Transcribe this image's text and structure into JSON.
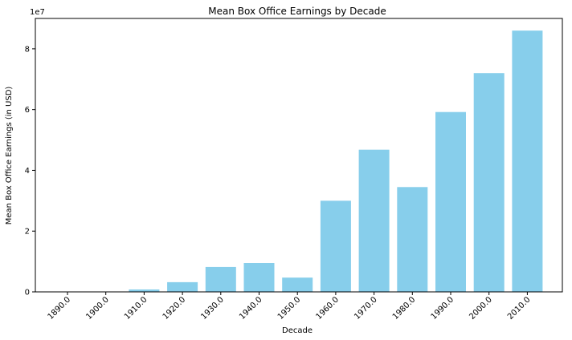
{
  "chart_data": {
    "type": "bar",
    "title": "Mean Box Office Earnings by Decade",
    "xlabel": "Decade",
    "ylabel": "Mean Box Office Earnings (in USD)",
    "y_scale_label": "1e7",
    "categories": [
      "1890.0",
      "1900.0",
      "1910.0",
      "1920.0",
      "1930.0",
      "1940.0",
      "1950.0",
      "1960.0",
      "1970.0",
      "1980.0",
      "1990.0",
      "2000.0",
      "2010.0"
    ],
    "values": [
      0,
      0,
      0.08,
      0.32,
      0.82,
      0.95,
      0.47,
      3.0,
      4.68,
      3.45,
      5.92,
      7.2,
      8.6
    ],
    "value_unit_multiplier": 10000000,
    "y_ticks": [
      0,
      2,
      4,
      6,
      8
    ],
    "ylim": [
      0,
      9.0
    ],
    "bar_color": "#87ceeb",
    "grid": false
  }
}
